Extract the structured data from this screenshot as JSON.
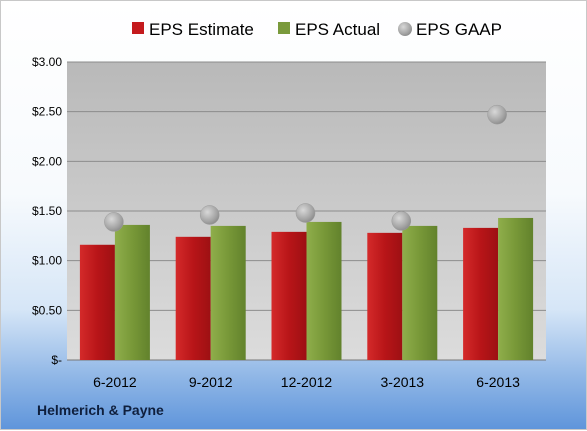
{
  "chart_data": {
    "type": "bar",
    "categories": [
      "6-2012",
      "9-2012",
      "12-2012",
      "3-2013",
      "6-2013"
    ],
    "series": [
      {
        "name": "EPS Estimate",
        "kind": "bar",
        "color": "#c0181b",
        "values": [
          1.16,
          1.24,
          1.29,
          1.28,
          1.33
        ]
      },
      {
        "name": "EPS Actual",
        "kind": "bar",
        "color": "#7a9a3c",
        "values": [
          1.36,
          1.35,
          1.39,
          1.35,
          1.43
        ]
      },
      {
        "name": "EPS GAAP",
        "kind": "marker",
        "color": "#a9a9a9",
        "values": [
          1.38,
          1.45,
          1.47,
          1.39,
          2.46
        ]
      }
    ],
    "y_tick_labels": [
      "$-",
      "$0.50",
      "$1.00",
      "$1.50",
      "$2.00",
      "$2.50",
      "$3.00"
    ],
    "ylim": [
      0,
      3.0
    ],
    "grid": true,
    "legend_position": "top"
  },
  "footer": {
    "company": "Helmerich & Payne"
  }
}
